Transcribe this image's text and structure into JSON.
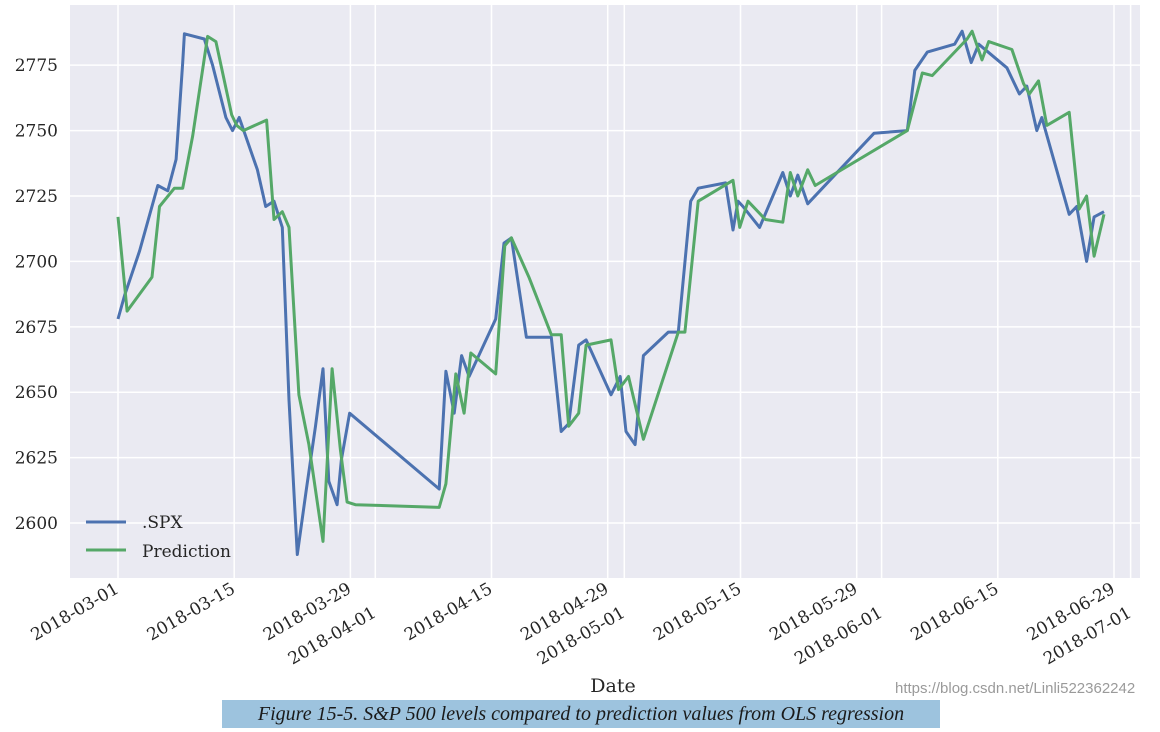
{
  "chart_data": {
    "type": "line",
    "title": "",
    "xlabel": "Date",
    "ylabel": "",
    "x_unit": "days since 2018-03-01",
    "xlim": [
      -6,
      124
    ],
    "ylim": [
      2579,
      2798
    ],
    "grid": true,
    "legend_position": "bottom-left",
    "yticks": [
      2600,
      2625,
      2650,
      2675,
      2700,
      2725,
      2750,
      2775
    ],
    "xticks": [
      {
        "day": 0,
        "label": "2018-03-01"
      },
      {
        "day": 14,
        "label": "2018-03-15"
      },
      {
        "day": 28,
        "label": "2018-03-29"
      },
      {
        "day": 31,
        "label": "2018-04-01"
      },
      {
        "day": 45,
        "label": "2018-04-15"
      },
      {
        "day": 59,
        "label": "2018-04-29"
      },
      {
        "day": 61,
        "label": "2018-05-01"
      },
      {
        "day": 75,
        "label": "2018-05-15"
      },
      {
        "day": 89,
        "label": "2018-05-29"
      },
      {
        "day": 92,
        "label": "2018-06-01"
      },
      {
        "day": 106,
        "label": "2018-06-15"
      },
      {
        "day": 120,
        "label": "2018-06-29"
      },
      {
        "day": 122,
        "label": "2018-07-01"
      }
    ],
    "series": [
      {
        "name": ".SPX",
        "color": "#4c72b0",
        "points": [
          [
            0,
            2678
          ],
          [
            0.8,
            2687
          ],
          [
            2.6,
            2704
          ],
          [
            4.8,
            2729
          ],
          [
            6.0,
            2727
          ],
          [
            7.0,
            2739
          ],
          [
            7.8,
            2776
          ],
          [
            8.0,
            2787
          ],
          [
            10.4,
            2785
          ],
          [
            11.4,
            2775
          ],
          [
            13.0,
            2755
          ],
          [
            13.8,
            2750
          ],
          [
            14.6,
            2755
          ],
          [
            16.8,
            2735
          ],
          [
            17.8,
            2721
          ],
          [
            18.8,
            2723
          ],
          [
            19.8,
            2713
          ],
          [
            20.6,
            2647
          ],
          [
            21.6,
            2588
          ],
          [
            22.7,
            2613
          ],
          [
            23.8,
            2637
          ],
          [
            24.7,
            2659
          ],
          [
            25.4,
            2616
          ],
          [
            26.4,
            2607
          ],
          [
            26.9,
            2624
          ],
          [
            27.9,
            2642
          ],
          [
            38.7,
            2613
          ],
          [
            39.5,
            2658
          ],
          [
            40.5,
            2642
          ],
          [
            41.4,
            2664
          ],
          [
            42.3,
            2656
          ],
          [
            45.5,
            2678
          ],
          [
            46.5,
            2707
          ],
          [
            47.4,
            2709
          ],
          [
            49.2,
            2671
          ],
          [
            52.2,
            2671
          ],
          [
            53.4,
            2635
          ],
          [
            54.3,
            2638
          ],
          [
            55.5,
            2668
          ],
          [
            56.4,
            2670
          ],
          [
            59.4,
            2649
          ],
          [
            60.5,
            2656
          ],
          [
            61.2,
            2635
          ],
          [
            62.3,
            2630
          ],
          [
            63.3,
            2664
          ],
          [
            66.3,
            2673
          ],
          [
            67.5,
            2673
          ],
          [
            69.0,
            2723
          ],
          [
            69.9,
            2728
          ],
          [
            73.2,
            2730
          ],
          [
            74.1,
            2712
          ],
          [
            74.7,
            2723
          ],
          [
            75.3,
            2721
          ],
          [
            77.3,
            2713
          ],
          [
            80.1,
            2734
          ],
          [
            81.0,
            2725
          ],
          [
            81.9,
            2733
          ],
          [
            83.1,
            2722
          ],
          [
            91.1,
            2749
          ],
          [
            95.1,
            2750
          ],
          [
            96.0,
            2773
          ],
          [
            97.5,
            2780
          ],
          [
            100.8,
            2783
          ],
          [
            101.7,
            2788
          ],
          [
            102.8,
            2776
          ],
          [
            103.7,
            2783
          ],
          [
            107.1,
            2774
          ],
          [
            108.6,
            2764
          ],
          [
            109.5,
            2767
          ],
          [
            110.7,
            2750
          ],
          [
            111.3,
            2755
          ],
          [
            114.6,
            2718
          ],
          [
            115.5,
            2721
          ],
          [
            116.7,
            2700
          ],
          [
            117.6,
            2717
          ],
          [
            118.8,
            2719
          ]
        ]
      },
      {
        "name": "Prediction",
        "color": "#55a868",
        "points": [
          [
            0,
            2717
          ],
          [
            1.1,
            2681
          ],
          [
            4.1,
            2694
          ],
          [
            5.0,
            2721
          ],
          [
            6.8,
            2728
          ],
          [
            7.8,
            2728
          ],
          [
            9.0,
            2748
          ],
          [
            10.8,
            2786
          ],
          [
            11.8,
            2784
          ],
          [
            13.7,
            2756
          ],
          [
            14.3,
            2752
          ],
          [
            15.1,
            2750
          ],
          [
            17.9,
            2754
          ],
          [
            18.8,
            2716
          ],
          [
            19.8,
            2719
          ],
          [
            20.6,
            2713
          ],
          [
            21.8,
            2649
          ],
          [
            23.0,
            2630
          ],
          [
            24.7,
            2593
          ],
          [
            25.8,
            2659
          ],
          [
            26.8,
            2628
          ],
          [
            27.6,
            2608
          ],
          [
            28.6,
            2607
          ],
          [
            38.7,
            2606
          ],
          [
            39.5,
            2615
          ],
          [
            40.7,
            2657
          ],
          [
            41.7,
            2642
          ],
          [
            42.5,
            2665
          ],
          [
            45.5,
            2657
          ],
          [
            46.6,
            2706
          ],
          [
            47.4,
            2709
          ],
          [
            49.5,
            2694
          ],
          [
            52.2,
            2672
          ],
          [
            53.4,
            2672
          ],
          [
            54.3,
            2637
          ],
          [
            55.5,
            2642
          ],
          [
            56.4,
            2668
          ],
          [
            59.4,
            2670
          ],
          [
            60.3,
            2651
          ],
          [
            61.5,
            2656
          ],
          [
            63.3,
            2632
          ],
          [
            67.5,
            2673
          ],
          [
            68.3,
            2673
          ],
          [
            69.9,
            2723
          ],
          [
            74.1,
            2731
          ],
          [
            74.9,
            2713
          ],
          [
            75.9,
            2723
          ],
          [
            78.0,
            2716
          ],
          [
            80.1,
            2715
          ],
          [
            81.0,
            2734
          ],
          [
            81.9,
            2725
          ],
          [
            83.1,
            2735
          ],
          [
            84.0,
            2729
          ],
          [
            95.1,
            2750
          ],
          [
            96.9,
            2772
          ],
          [
            98.1,
            2771
          ],
          [
            102.3,
            2785
          ],
          [
            102.9,
            2788
          ],
          [
            104.1,
            2777
          ],
          [
            104.9,
            2784
          ],
          [
            107.7,
            2781
          ],
          [
            109.1,
            2768
          ],
          [
            109.8,
            2764
          ],
          [
            110.9,
            2769
          ],
          [
            111.9,
            2752
          ],
          [
            114.6,
            2757
          ],
          [
            115.8,
            2720
          ],
          [
            116.7,
            2725
          ],
          [
            117.6,
            2702
          ],
          [
            118.8,
            2718
          ]
        ]
      }
    ]
  },
  "caption": "Figure 15-5. S&P 500 levels compared to prediction values from OLS regression",
  "watermark": "https://blog.csdn.net/Linli522362242"
}
